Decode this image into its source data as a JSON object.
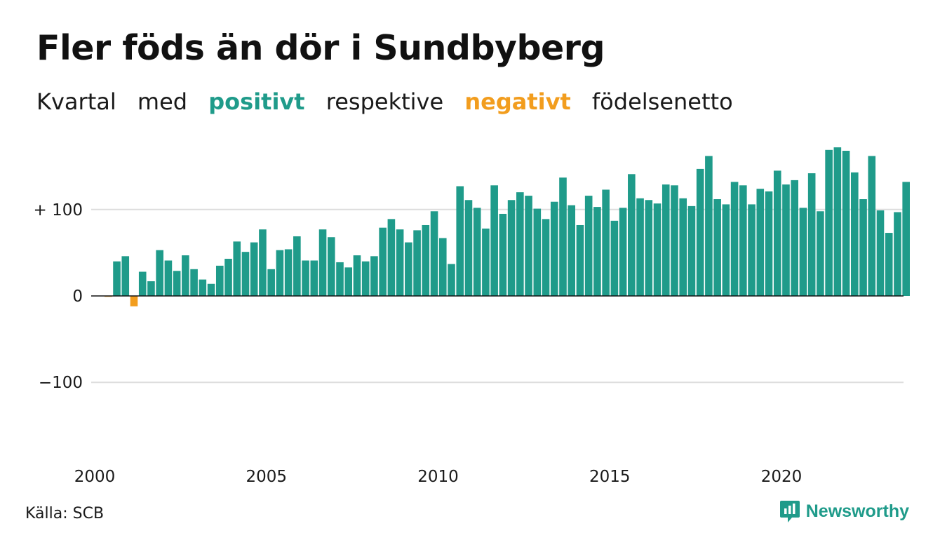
{
  "header": {
    "title": "Fler föds än dör i Sundbyberg",
    "subtitle": {
      "w1": "Kvartal",
      "w2": "med",
      "positive": "positivt",
      "w3": "respektive",
      "negative": "negativt",
      "w4": "födelsenetto"
    }
  },
  "footer": {
    "source": "Källa: SCB",
    "brand": "Newsworthy",
    "brand_icon": "newsworthy-logo-icon"
  },
  "colors": {
    "positive": "#1f9b8a",
    "negative": "#f29d1e",
    "grid": "#dddddd",
    "zero": "#111111"
  },
  "chart_data": {
    "type": "bar",
    "title": "Fler föds än dör i Sundbyberg",
    "xlabel": "",
    "ylabel": "",
    "start_year": 2000,
    "periods_per_year": 4,
    "ylim": [
      -190,
      195
    ],
    "yticks": [
      {
        "value": 100,
        "label": "+ 100"
      },
      {
        "value": 0,
        "label": "0"
      },
      {
        "value": -100,
        "label": "−100"
      }
    ],
    "xticks": [
      {
        "value": 2000,
        "label": "2000"
      },
      {
        "value": 2005,
        "label": "2005"
      },
      {
        "value": 2010,
        "label": "2010"
      },
      {
        "value": 2015,
        "label": "2015"
      },
      {
        "value": 2020,
        "label": "2020"
      }
    ],
    "grid": true,
    "values": [
      -1,
      40,
      46,
      -12,
      28,
      17,
      53,
      41,
      29,
      47,
      31,
      19,
      14,
      35,
      43,
      63,
      51,
      62,
      77,
      31,
      53,
      54,
      69,
      41,
      41,
      77,
      68,
      39,
      33,
      47,
      40,
      46,
      79,
      89,
      77,
      62,
      76,
      82,
      98,
      67,
      37,
      127,
      111,
      102,
      78,
      128,
      95,
      111,
      120,
      116,
      101,
      89,
      109,
      137,
      105,
      82,
      116,
      103,
      123,
      87,
      102,
      141,
      113,
      111,
      107,
      129,
      128,
      113,
      104,
      147,
      162,
      112,
      106,
      132,
      128,
      106,
      124,
      121,
      145,
      129,
      134,
      102,
      142,
      98,
      169,
      172,
      168,
      143,
      112,
      162,
      99,
      73,
      97,
      132
    ]
  }
}
